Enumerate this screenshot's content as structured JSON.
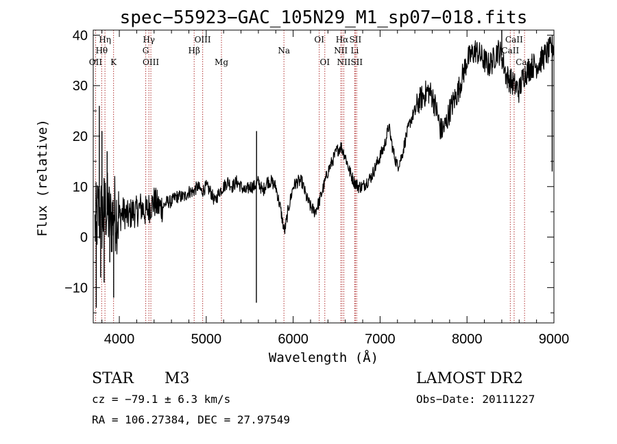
{
  "title": "spec−55923−GAC_105N29_M1_sp07−018.fits",
  "info": {
    "class": "STAR",
    "subclass": "M3",
    "survey": "LAMOST DR2",
    "cz": "cz = −79.1 ± 6.3 km/s",
    "obs_date": "Obs−Date: 20111227",
    "radec": "RA = 106.27384, DEC =  27.97549"
  },
  "chart_data": {
    "type": "line",
    "xlabel": "Wavelength (Å)",
    "ylabel": "Flux (relative)",
    "xlim": [
      3700,
      9000
    ],
    "ylim": [
      -17,
      41
    ],
    "xticks": [
      4000,
      5000,
      6000,
      7000,
      8000,
      9000
    ],
    "yticks": [
      -10,
      0,
      10,
      20,
      30,
      40
    ],
    "xtick_labels": [
      "4000",
      "5000",
      "6000",
      "7000",
      "8000",
      "9000"
    ],
    "ytick_labels": [
      "−10",
      "0",
      "10",
      "20",
      "30",
      "40"
    ],
    "grid": false,
    "colors": {
      "spectrum": "#000000",
      "line_marker": "#b03030"
    },
    "spectrum": {
      "x": [
        3720,
        3760,
        3800,
        3850,
        3900,
        3950,
        4000,
        4050,
        4100,
        4150,
        4200,
        4250,
        4300,
        4350,
        4400,
        4450,
        4500,
        4550,
        4600,
        4650,
        4700,
        4750,
        4800,
        4850,
        4900,
        4950,
        5000,
        5050,
        5100,
        5150,
        5200,
        5250,
        5300,
        5350,
        5400,
        5450,
        5500,
        5550,
        5600,
        5650,
        5700,
        5750,
        5800,
        5850,
        5900,
        5950,
        6000,
        6050,
        6100,
        6150,
        6200,
        6250,
        6300,
        6350,
        6400,
        6450,
        6500,
        6550,
        6600,
        6650,
        6700,
        6750,
        6800,
        6850,
        6900,
        6950,
        7000,
        7050,
        7100,
        7150,
        7200,
        7250,
        7300,
        7350,
        7400,
        7450,
        7500,
        7550,
        7600,
        7650,
        7700,
        7750,
        7800,
        7850,
        7900,
        7950,
        8000,
        8050,
        8100,
        8150,
        8200,
        8250,
        8300,
        8350,
        8400,
        8450,
        8500,
        8550,
        8600,
        8650,
        8700,
        8750,
        8800,
        8850,
        8900,
        8950,
        9000
      ],
      "y": [
        2,
        5,
        4,
        6,
        3,
        5,
        4,
        5,
        4,
        5,
        5,
        6,
        5,
        6,
        7,
        6,
        6,
        7,
        7,
        8,
        8,
        8,
        9,
        9,
        10,
        9,
        10,
        9,
        7,
        9,
        10,
        11,
        10,
        11,
        10,
        9,
        10,
        10,
        11,
        9,
        11,
        11,
        10,
        6,
        1,
        6,
        10,
        11,
        11,
        8,
        6,
        5,
        7,
        10,
        13,
        15,
        17,
        18,
        16,
        13,
        11,
        10,
        10,
        11,
        12,
        14,
        16,
        18,
        22,
        17,
        14,
        16,
        20,
        23,
        25,
        27,
        28,
        29,
        28,
        25,
        21,
        22,
        25,
        27,
        29,
        32,
        35,
        36,
        37,
        36,
        35,
        34,
        35,
        37,
        36,
        32,
        31,
        30,
        29,
        32,
        33,
        34,
        34,
        35,
        36,
        37,
        38
      ],
      "spikes": [
        {
          "x": 3735,
          "y": -14
        },
        {
          "x": 3770,
          "y": 26
        },
        {
          "x": 3785,
          "y": -8
        },
        {
          "x": 3800,
          "y": 21
        },
        {
          "x": 3825,
          "y": -9
        },
        {
          "x": 3860,
          "y": 17
        },
        {
          "x": 3890,
          "y": -5
        },
        {
          "x": 3935,
          "y": -12
        },
        {
          "x": 5577,
          "y": -13
        },
        {
          "x": 5579,
          "y": 21
        },
        {
          "x": 8400,
          "y": 41
        },
        {
          "x": 8980,
          "y": 13
        }
      ]
    },
    "lines": [
      {
        "label": "Hη",
        "x": 3835,
        "row": 0
      },
      {
        "label": "Hθ",
        "x": 3797,
        "row": 1
      },
      {
        "label": "OII",
        "x": 3727,
        "row": 2
      },
      {
        "label": "K",
        "x": 3934,
        "row": 2
      },
      {
        "label": "Hγ",
        "x": 4340,
        "row": 0
      },
      {
        "label": "G",
        "x": 4304,
        "row": 1
      },
      {
        "label": "OIII",
        "x": 4363,
        "row": 2
      },
      {
        "label": "OIII",
        "x": 4959,
        "row": 0
      },
      {
        "label": "Hβ",
        "x": 4861,
        "row": 1
      },
      {
        "label": "Mg",
        "x": 5175,
        "row": 2
      },
      {
        "label": "Na",
        "x": 5894,
        "row": 1
      },
      {
        "label": "OI",
        "x": 6300,
        "row": 0
      },
      {
        "label": "OI",
        "x": 6364,
        "row": 2
      },
      {
        "label": "Hα",
        "x": 6563,
        "row": 0
      },
      {
        "label": "SII",
        "x": 6716,
        "row": 0
      },
      {
        "label": "NII",
        "x": 6548,
        "row": 1
      },
      {
        "label": "Li",
        "x": 6708,
        "row": 1
      },
      {
        "label": "NII",
        "x": 6583,
        "row": 2
      },
      {
        "label": "SII",
        "x": 6731,
        "row": 2
      },
      {
        "label": "CaII",
        "x": 8542,
        "row": 0
      },
      {
        "label": "CaII",
        "x": 8498,
        "row": 1
      },
      {
        "label": "CaII",
        "x": 8662,
        "row": 2
      }
    ]
  }
}
